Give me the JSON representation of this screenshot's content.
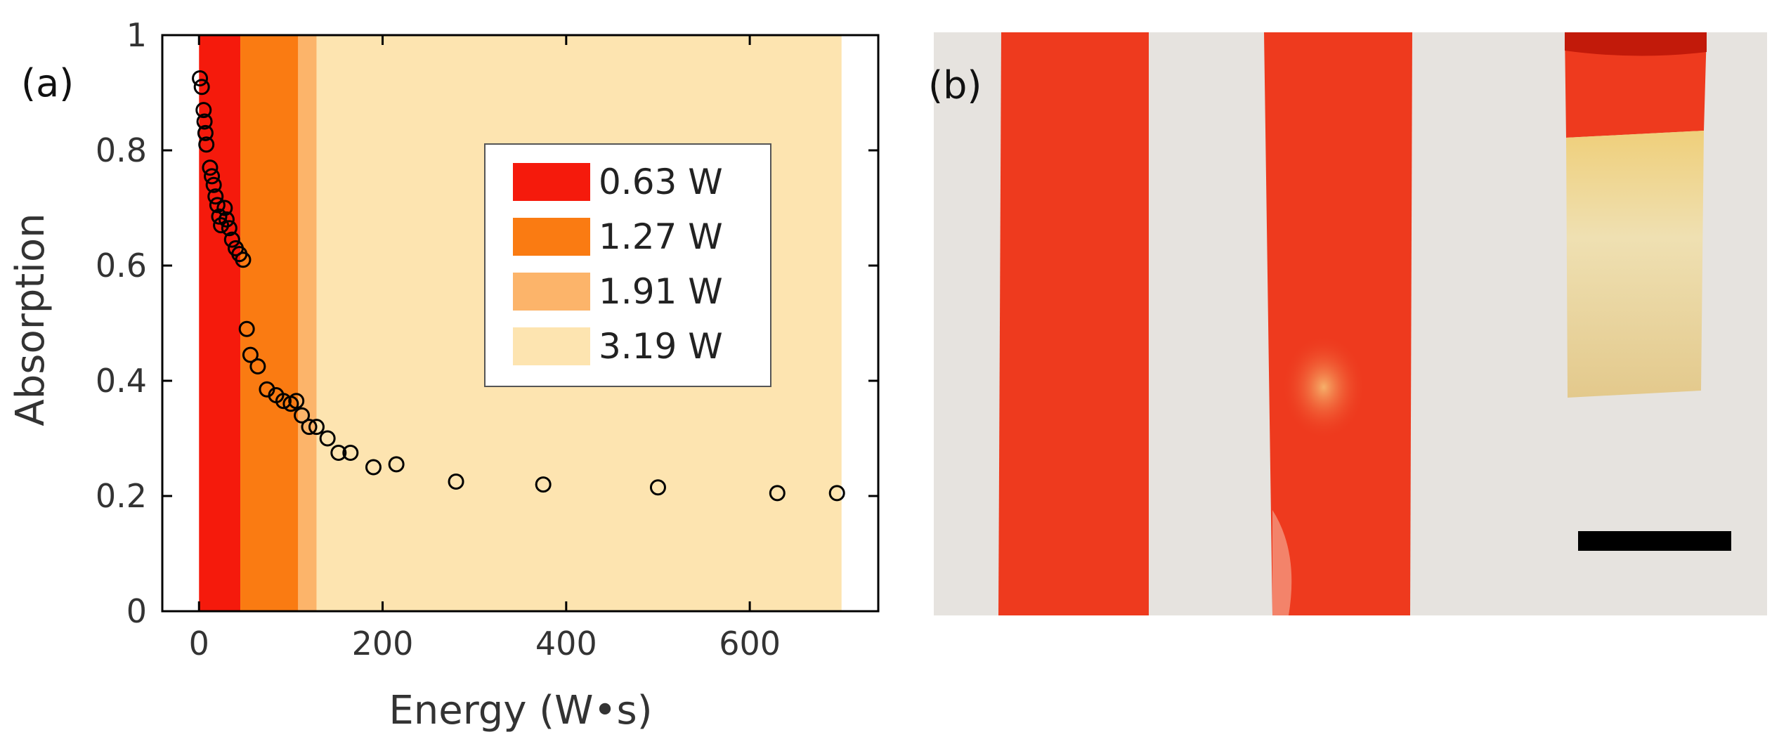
{
  "chart_data": {
    "type": "scatter",
    "panel_label": "(a)",
    "xlabel": "Energy (W•s)",
    "ylabel": "Absorption",
    "xlim": [
      -40,
      740
    ],
    "ylim": [
      0,
      1
    ],
    "x_ticks": [
      0,
      200,
      400,
      600
    ],
    "y_ticks": [
      0,
      0.2,
      0.4,
      0.6,
      0.8,
      1
    ],
    "y_tick_labels": [
      "0",
      "0.2",
      "0.4",
      "0.6",
      "0.8",
      "1"
    ],
    "legend_position": "upper-right",
    "regions": [
      {
        "name": "0.63 W",
        "x_start": 0,
        "x_end": 45,
        "color": "#f51a0c"
      },
      {
        "name": "1.27 W",
        "x_start": 45,
        "x_end": 108,
        "color": "#fa7b12"
      },
      {
        "name": "1.91 W",
        "x_start": 108,
        "x_end": 128,
        "color": "#fcb46a"
      },
      {
        "name": "3.19 W",
        "x_start": 128,
        "x_end": 700,
        "color": "#fde4b0"
      }
    ],
    "points": [
      {
        "x": 1,
        "y": 0.925
      },
      {
        "x": 3,
        "y": 0.91
      },
      {
        "x": 5,
        "y": 0.87
      },
      {
        "x": 6,
        "y": 0.85
      },
      {
        "x": 7,
        "y": 0.83
      },
      {
        "x": 8,
        "y": 0.81
      },
      {
        "x": 12,
        "y": 0.77
      },
      {
        "x": 14,
        "y": 0.755
      },
      {
        "x": 16,
        "y": 0.74
      },
      {
        "x": 18,
        "y": 0.72
      },
      {
        "x": 20,
        "y": 0.705
      },
      {
        "x": 22,
        "y": 0.685
      },
      {
        "x": 24,
        "y": 0.67
      },
      {
        "x": 28,
        "y": 0.7
      },
      {
        "x": 30,
        "y": 0.68
      },
      {
        "x": 33,
        "y": 0.665
      },
      {
        "x": 36,
        "y": 0.645
      },
      {
        "x": 40,
        "y": 0.63
      },
      {
        "x": 44,
        "y": 0.62
      },
      {
        "x": 48,
        "y": 0.61
      },
      {
        "x": 52,
        "y": 0.49
      },
      {
        "x": 56,
        "y": 0.445
      },
      {
        "x": 64,
        "y": 0.425
      },
      {
        "x": 74,
        "y": 0.385
      },
      {
        "x": 84,
        "y": 0.375
      },
      {
        "x": 92,
        "y": 0.365
      },
      {
        "x": 100,
        "y": 0.36
      },
      {
        "x": 106,
        "y": 0.365
      },
      {
        "x": 112,
        "y": 0.34
      },
      {
        "x": 120,
        "y": 0.32
      },
      {
        "x": 128,
        "y": 0.32
      },
      {
        "x": 140,
        "y": 0.3
      },
      {
        "x": 152,
        "y": 0.275
      },
      {
        "x": 165,
        "y": 0.275
      },
      {
        "x": 190,
        "y": 0.25
      },
      {
        "x": 215,
        "y": 0.255
      },
      {
        "x": 280,
        "y": 0.225
      },
      {
        "x": 375,
        "y": 0.22
      },
      {
        "x": 500,
        "y": 0.215
      },
      {
        "x": 630,
        "y": 0.205
      },
      {
        "x": 695,
        "y": 0.205
      }
    ]
  },
  "photo": {
    "panel_label": "(b)",
    "background_color": "#e6e3df",
    "strip_color": "#ee3a1e",
    "bleached_color": "#e8d49c",
    "scale_bar_color": "#000000"
  }
}
